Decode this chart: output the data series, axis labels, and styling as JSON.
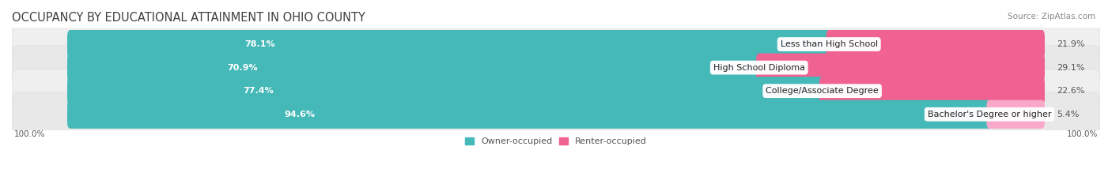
{
  "title": "OCCUPANCY BY EDUCATIONAL ATTAINMENT IN OHIO COUNTY",
  "source": "Source: ZipAtlas.com",
  "categories": [
    "Less than High School",
    "High School Diploma",
    "College/Associate Degree",
    "Bachelor's Degree or higher"
  ],
  "owner_pct": [
    78.1,
    70.9,
    77.4,
    94.6
  ],
  "renter_pct": [
    21.9,
    29.1,
    22.6,
    5.4
  ],
  "owner_color": "#45b8b8",
  "renter_color": "#f06292",
  "renter_color_light": "#f9a8c9",
  "row_bg_color": "#f0f0f0",
  "row_bg_dark": "#e6e6e6",
  "title_color": "#404040",
  "label_color": "#555555",
  "pct_right_color": "#555555",
  "legend_owner": "Owner-occupied",
  "legend_renter": "Renter-occupied",
  "axis_label_left": "100.0%",
  "axis_label_right": "100.0%",
  "title_fontsize": 10.5,
  "label_fontsize": 8,
  "cat_fontsize": 8,
  "bar_height": 0.62,
  "figsize": [
    14.06,
    2.33
  ],
  "dpi": 100
}
